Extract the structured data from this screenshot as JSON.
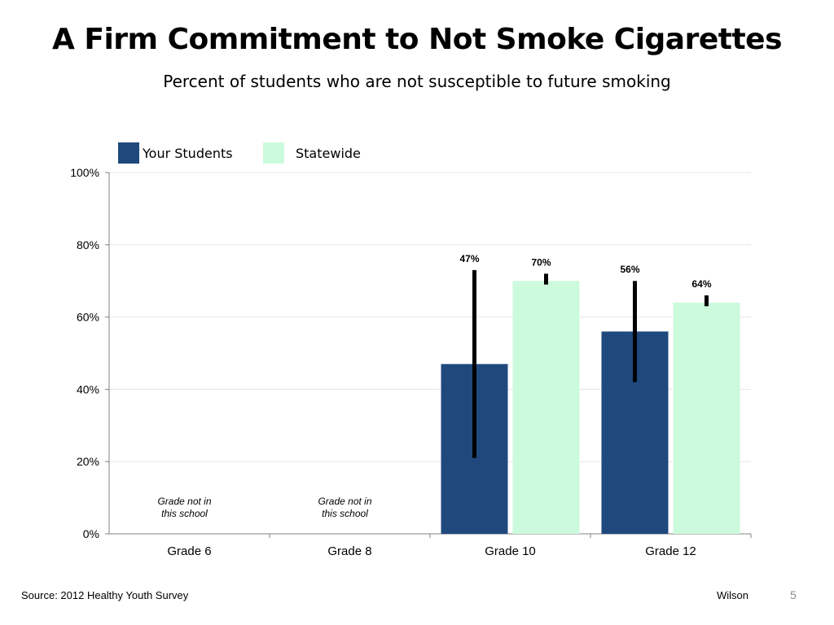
{
  "slide": {
    "title": "A Firm Commitment to Not Smoke Cigarettes",
    "subtitle": "Percent of students who are not susceptible to future smoking",
    "source": "Source: 2012 Healthy Youth Survey",
    "author": "Wilson",
    "page_number": "5"
  },
  "chart_data": {
    "type": "bar",
    "title": "",
    "xlabel": "",
    "ylabel": "",
    "ylim": [
      0,
      100
    ],
    "y_ticks": [
      0,
      20,
      40,
      60,
      80,
      100
    ],
    "y_tick_labels": [
      "0%",
      "20%",
      "40%",
      "60%",
      "80%",
      "100%"
    ],
    "grid": true,
    "legend_position": "top-left",
    "categories": [
      "Grade 6",
      "Grade 8",
      "Grade 10",
      "Grade 12"
    ],
    "series": [
      {
        "name": "Your Students",
        "color": "#1f497d",
        "values": [
          null,
          null,
          47,
          56
        ],
        "labels": [
          "",
          "",
          "47%",
          "56%"
        ],
        "error_low": [
          null,
          null,
          21,
          42
        ],
        "error_high": [
          null,
          null,
          73,
          70
        ]
      },
      {
        "name": "Statewide",
        "color": "#ccfadc",
        "values": [
          null,
          null,
          70,
          64
        ],
        "labels": [
          "",
          "",
          "70%",
          "64%"
        ],
        "error_low": [
          null,
          null,
          69,
          63
        ],
        "error_high": [
          null,
          null,
          72,
          66
        ]
      }
    ],
    "annotations": [
      {
        "category": "Grade 6",
        "lines": [
          "Grade not in",
          "this school"
        ]
      },
      {
        "category": "Grade 8",
        "lines": [
          "Grade not in",
          "this school"
        ]
      }
    ]
  }
}
